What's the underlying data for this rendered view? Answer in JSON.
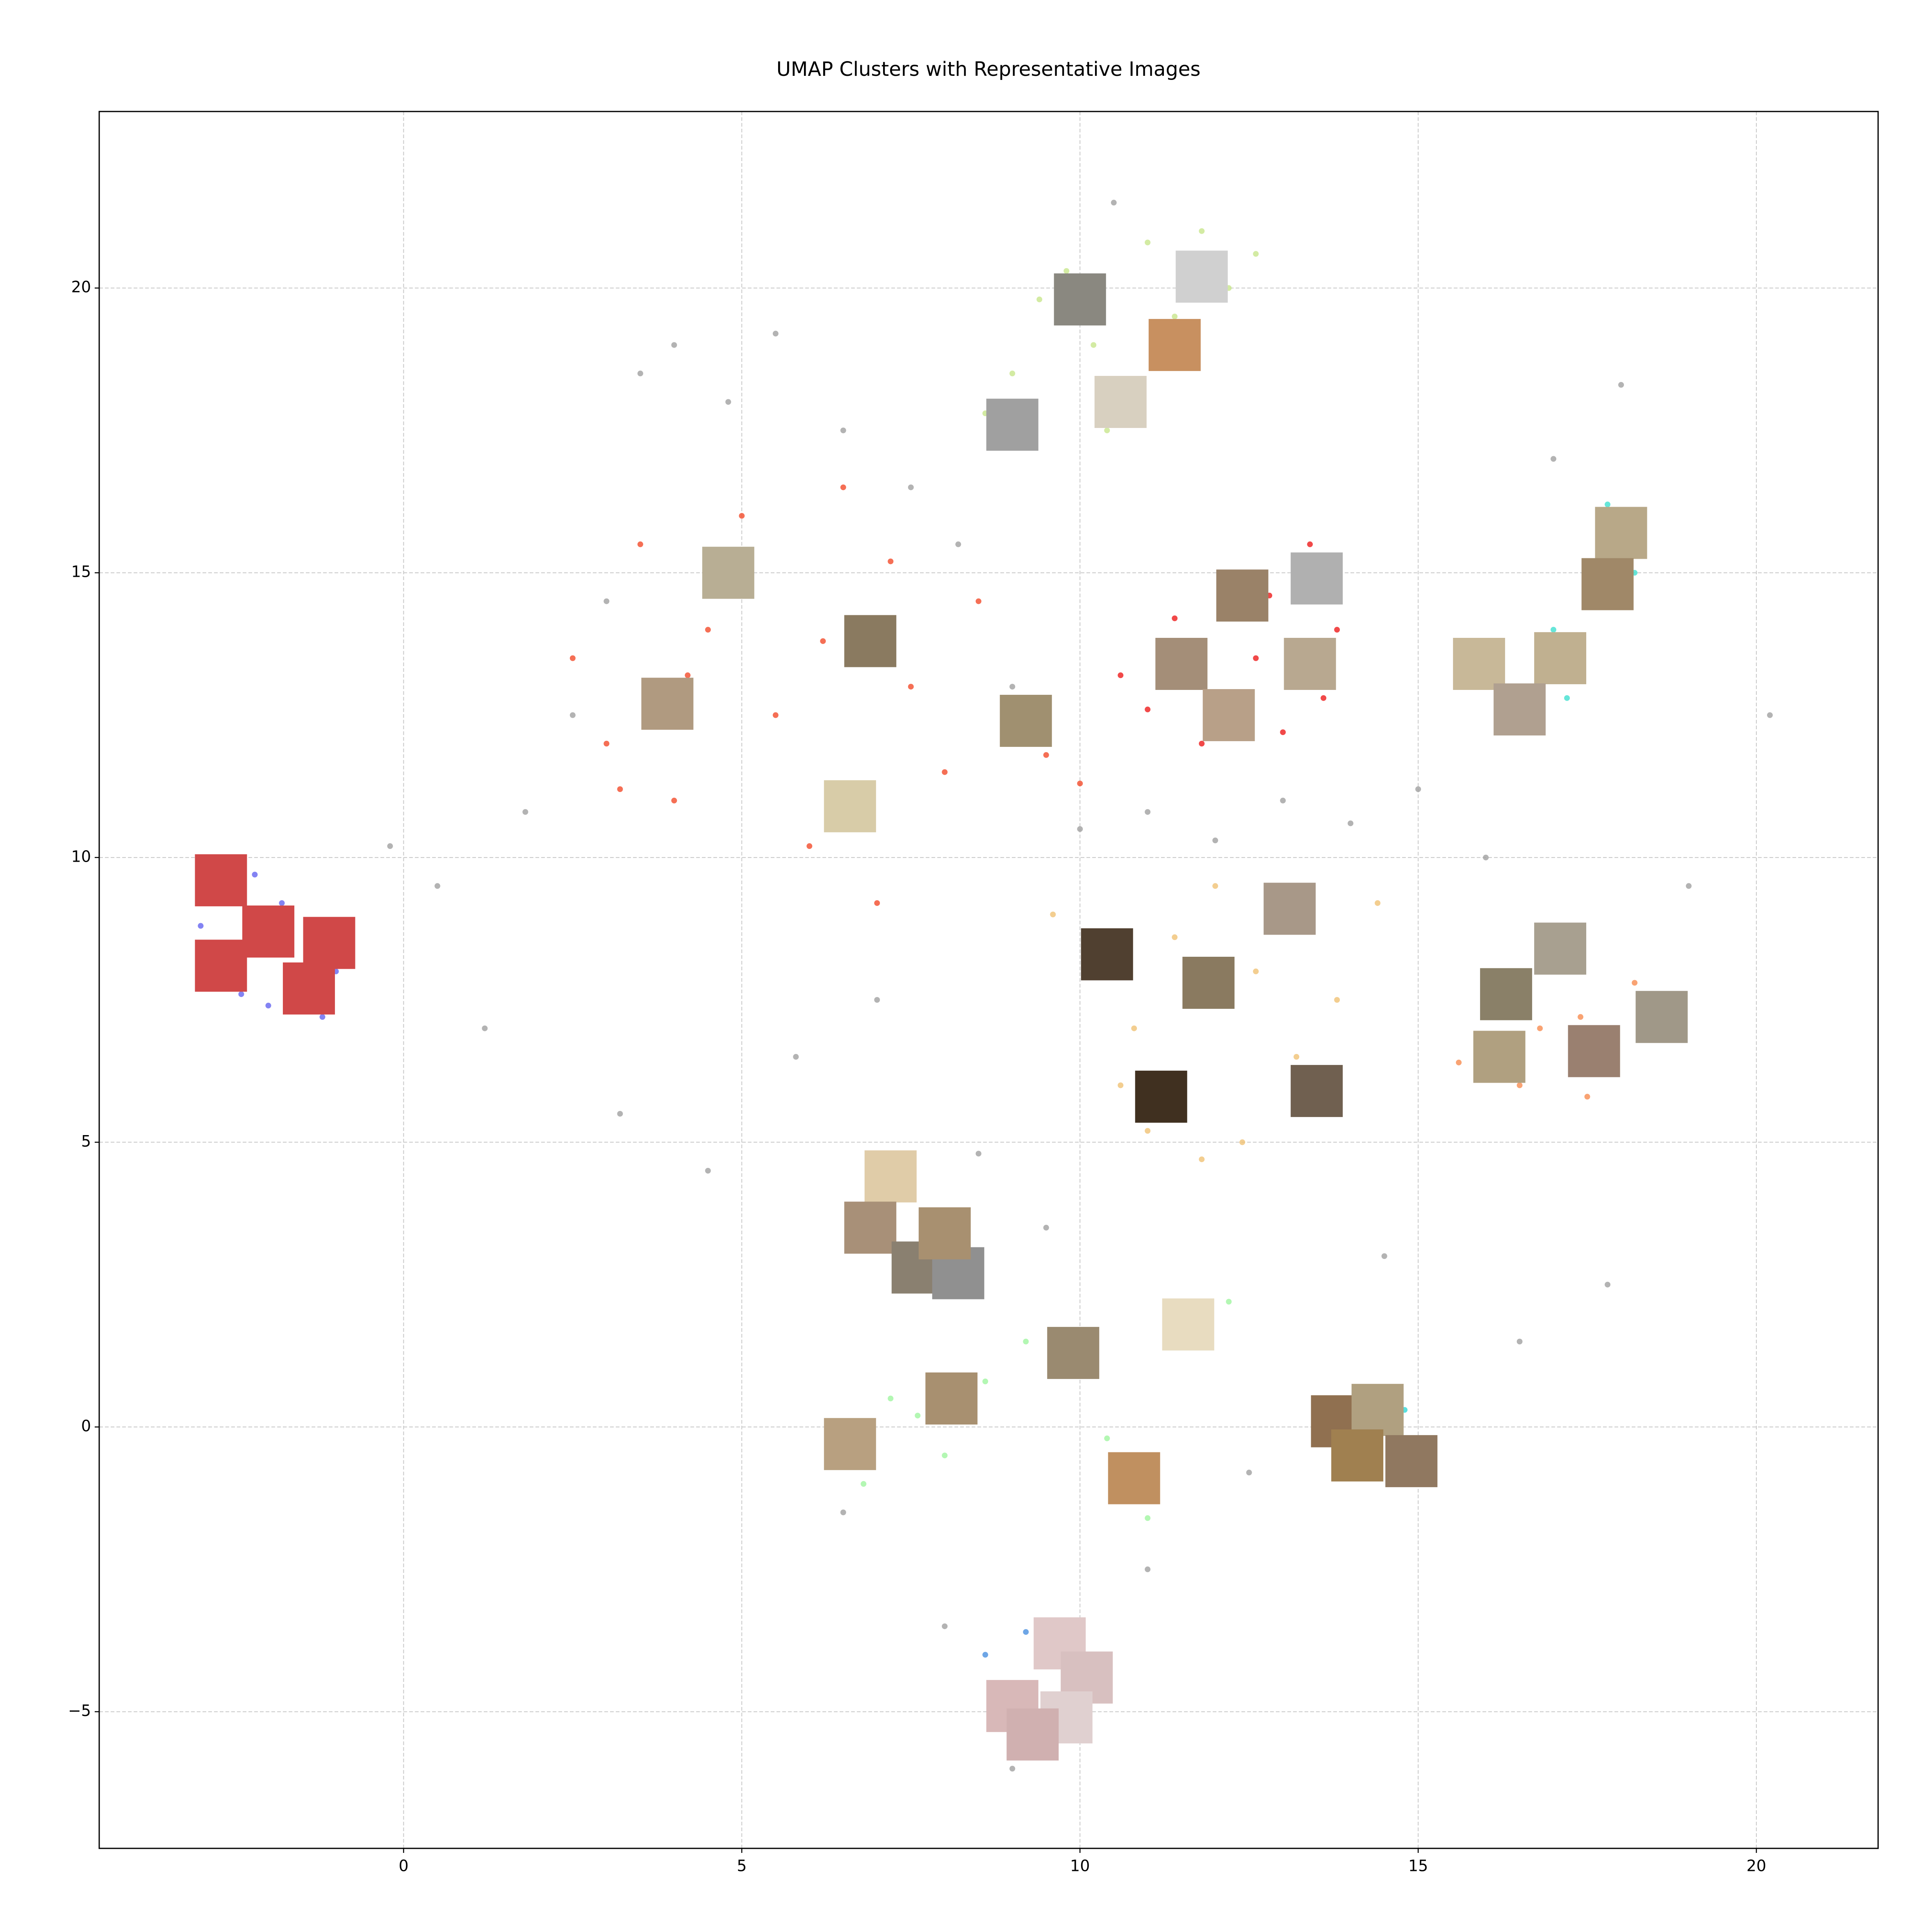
{
  "chart_data": {
    "type": "scatter",
    "title": "UMAP Clusters with Representative Images",
    "xlim": [
      -4.5,
      21.8
    ],
    "ylim": [
      -7.4,
      23.1
    ],
    "xticks": [
      0,
      5,
      10,
      15,
      20
    ],
    "yticks": [
      {
        "value": -5,
        "label": "−5"
      },
      0,
      5,
      10,
      15,
      20
    ],
    "grid": true,
    "series": [
      {
        "color": "#a0a0a0",
        "x": [
          -0.2,
          0.5,
          1.2,
          1.8,
          2.5,
          3.0,
          3.5,
          4.0,
          4.8,
          5.5,
          6.5,
          7.5,
          8.2,
          9.0,
          10.0,
          11.0,
          12.0,
          13.0,
          14.0,
          15.0,
          16.0,
          17.0,
          18.0,
          19.0,
          20.2,
          3.2,
          4.5,
          5.8,
          7.0,
          8.5,
          9.5,
          6.5,
          8.0,
          11.0,
          12.5,
          14.5,
          16.5,
          17.8,
          10.5,
          9.0
        ],
        "y": [
          10.2,
          9.5,
          7.0,
          10.8,
          12.5,
          14.5,
          18.5,
          19.0,
          18.0,
          19.2,
          17.5,
          16.5,
          15.5,
          13.0,
          10.5,
          10.8,
          10.3,
          11.0,
          10.6,
          11.2,
          10.0,
          17.0,
          18.3,
          9.5,
          12.5,
          5.5,
          4.5,
          6.5,
          7.5,
          4.8,
          3.5,
          -1.5,
          -3.5,
          -2.5,
          -0.8,
          3.0,
          1.5,
          2.5,
          21.5,
          -6.0
        ]
      },
      {
        "color": "#6464f0",
        "x": [
          -3.0,
          -2.6,
          -2.2,
          -1.8,
          -1.4,
          -1.0,
          -0.8,
          -2.4,
          -2.0,
          -1.6,
          -2.8,
          -1.2
        ],
        "y": [
          8.8,
          9.4,
          9.7,
          9.2,
          8.6,
          8.0,
          8.4,
          7.6,
          7.4,
          7.8,
          8.2,
          7.2
        ]
      },
      {
        "color": "#f24b2a",
        "x": [
          2.5,
          3.0,
          3.5,
          4.0,
          4.5,
          5.0,
          5.5,
          6.0,
          6.5,
          7.0,
          7.5,
          8.0,
          8.5,
          9.0,
          9.5,
          10.0,
          3.2,
          4.2,
          6.2,
          7.2
        ],
        "y": [
          13.5,
          12.0,
          15.5,
          11.0,
          14.0,
          16.0,
          12.5,
          10.2,
          16.5,
          9.2,
          13.0,
          11.5,
          14.5,
          12.0,
          11.8,
          11.3,
          11.2,
          13.2,
          13.8,
          15.2
        ]
      },
      {
        "color": "#ee1c1c",
        "x": [
          10.6,
          11.0,
          11.4,
          11.8,
          12.2,
          12.6,
          13.0,
          13.4,
          13.8,
          11.6,
          12.8,
          13.6
        ],
        "y": [
          13.2,
          12.6,
          14.2,
          12.0,
          15.0,
          13.5,
          12.2,
          15.5,
          14.0,
          13.8,
          14.6,
          12.8
        ]
      },
      {
        "color": "#c8e68c",
        "x": [
          8.6,
          9.0,
          9.4,
          9.8,
          10.2,
          10.6,
          11.0,
          11.4,
          11.8,
          12.2,
          12.6,
          10.4
        ],
        "y": [
          17.8,
          18.5,
          19.8,
          20.3,
          19.0,
          18.2,
          20.8,
          19.5,
          21.0,
          20.0,
          20.6,
          17.5
        ]
      },
      {
        "color": "#40e0d0",
        "x": [
          15.6,
          16.0,
          16.4,
          16.8,
          17.2,
          17.6,
          17.8,
          18.2,
          17.0,
          16.5
        ],
        "y": [
          13.0,
          13.8,
          12.4,
          13.5,
          12.8,
          15.2,
          16.2,
          15.0,
          14.0,
          12.2
        ]
      },
      {
        "color": "#f0c274",
        "x": [
          9.6,
          10.2,
          10.8,
          11.4,
          12.0,
          12.6,
          13.2,
          13.8,
          14.4,
          11.0,
          12.4,
          13.4,
          10.6,
          11.8
        ],
        "y": [
          9.0,
          8.2,
          7.0,
          8.6,
          9.5,
          8.0,
          6.5,
          7.5,
          9.2,
          5.2,
          5.0,
          5.8,
          6.0,
          4.7
        ]
      },
      {
        "color": "#f88c50",
        "x": [
          15.6,
          16.0,
          16.5,
          17.0,
          17.4,
          17.8,
          18.2,
          18.6,
          16.8,
          17.5
        ],
        "y": [
          6.4,
          7.6,
          6.0,
          8.8,
          7.2,
          6.2,
          7.8,
          7.0,
          7.0,
          5.8
        ]
      },
      {
        "color": "#a0f5a0",
        "x": [
          6.4,
          6.8,
          7.2,
          7.6,
          8.0,
          8.6,
          9.2,
          9.8,
          10.4,
          11.0,
          11.6,
          12.2,
          7.2,
          7.6
        ],
        "y": [
          -0.2,
          -1.0,
          0.5,
          0.2,
          -0.5,
          0.8,
          1.5,
          1.0,
          -0.2,
          -1.6,
          1.8,
          2.2,
          4.6,
          3.0
        ]
      },
      {
        "color": "#30d8d8",
        "x": [
          14.0,
          14.3,
          14.6,
          14.9,
          14.2,
          14.8
        ],
        "y": [
          0.4,
          -0.2,
          -0.8,
          -0.3,
          -0.9,
          0.3
        ]
      },
      {
        "color": "#4a90e0",
        "x": [
          8.6,
          8.9,
          9.2,
          9.5,
          9.8,
          9.0
        ],
        "y": [
          -4.0,
          -4.6,
          -3.6,
          -5.2,
          -4.4,
          -5.0
        ]
      }
    ],
    "thumbnails": {
      "x": [
        -2.7,
        -2.0,
        -1.1,
        -2.7,
        -1.4,
        4.8,
        3.9,
        6.9,
        9.2,
        6.6,
        11.5,
        12.4,
        13.5,
        13.4,
        12.2,
        10.0,
        11.8,
        11.4,
        10.6,
        9.0,
        18.0,
        17.8,
        15.9,
        17.1,
        16.5,
        13.1,
        10.4,
        11.9,
        11.2,
        13.5,
        17.1,
        16.3,
        18.6,
        16.2,
        17.6,
        7.2,
        6.9,
        7.6,
        8.2,
        8.0,
        11.6,
        9.9,
        8.1,
        6.6,
        10.8,
        13.8,
        14.4,
        14.1,
        14.9,
        9.7,
        9.0,
        10.1,
        9.8,
        9.3
      ],
      "y": [
        9.6,
        8.7,
        8.5,
        8.1,
        7.7,
        15.0,
        12.7,
        13.8,
        12.4,
        10.9,
        13.4,
        14.6,
        14.9,
        13.4,
        12.5,
        19.8,
        20.2,
        19.0,
        18.0,
        17.6,
        15.7,
        14.8,
        13.4,
        13.5,
        12.6,
        9.1,
        8.3,
        7.8,
        5.8,
        5.9,
        8.4,
        7.6,
        7.2,
        6.5,
        6.6,
        4.4,
        3.5,
        2.8,
        2.7,
        3.4,
        1.8,
        1.3,
        0.5,
        -0.3,
        -0.9,
        0.1,
        0.3,
        -0.5,
        -0.6,
        -3.8,
        -4.9,
        -4.4,
        -5.1,
        -5.4
      ],
      "colors": [
        "#d04848",
        "#d04848",
        "#d04848",
        "#d04848",
        "#d04848",
        "#b8ae94",
        "#b09a80",
        "#8a7a60",
        "#a09070",
        "#d8cca8",
        "#a48e78",
        "#9a8268",
        "#b0b0b0",
        "#b8a890",
        "#b8a088",
        "#8a8880",
        "#d0d0d0",
        "#c89060",
        "#d8d0c0",
        "#a0a0a0",
        "#b8a888",
        "#a08868",
        "#c8b898",
        "#c0b090",
        "#b0a090",
        "#a89888",
        "#504030",
        "#8a7a60",
        "#403020",
        "#706050",
        "#a8a090",
        "#8a8068",
        "#a09888",
        "#b0a080",
        "#9a8070",
        "#e0cca8",
        "#a89078",
        "#8a8070",
        "#909090",
        "#a89070",
        "#e8dcc0",
        "#9a8a70",
        "#a89070",
        "#b8a080",
        "#c09060",
        "#907050",
        "#b0a080",
        "#a08050",
        "#907860",
        "#e0c8c8",
        "#d8b8b8",
        "#d8c0c0",
        "#e0d0d0",
        "#d0b0b0"
      ]
    }
  }
}
